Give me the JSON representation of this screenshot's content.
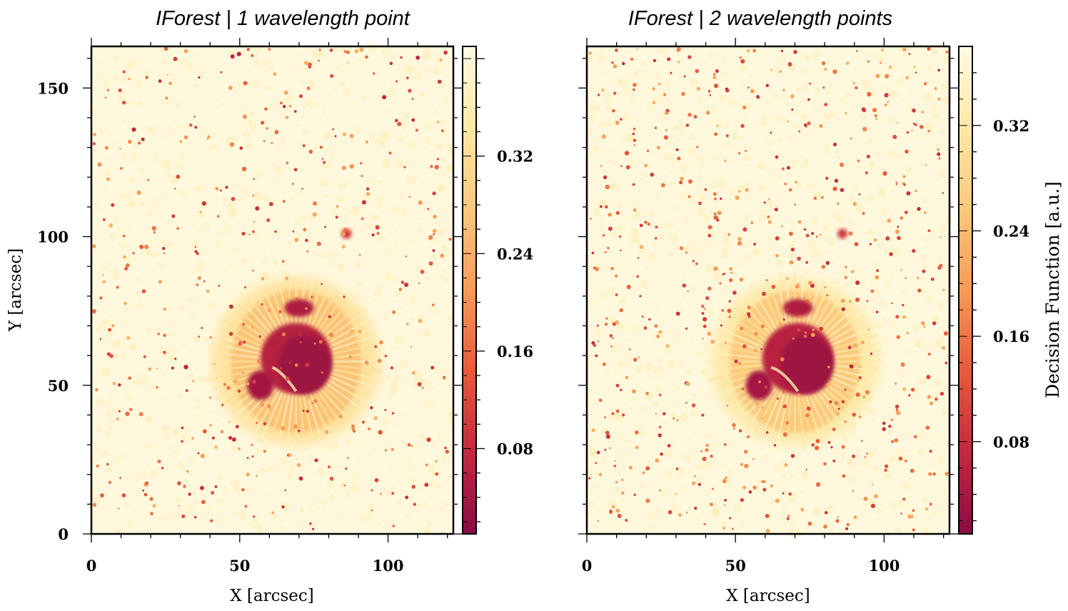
{
  "chart_data": [
    {
      "type": "heatmap",
      "title": "IForest | 1 wavelength point",
      "xlabel": "X [arcsec]",
      "ylabel": "Y [arcsec]",
      "xlim": [
        0,
        122
      ],
      "ylim": [
        0,
        164
      ],
      "xticks": [
        0,
        50,
        100
      ],
      "yticks": [
        0,
        50,
        100,
        150
      ],
      "colorbar": {
        "label": "",
        "range": [
          0.01,
          0.41
        ],
        "ticks": [
          "0.08",
          "0.16",
          "0.24",
          "0.32"
        ]
      },
      "colormap": [
        "#8b0a45",
        "#c3293f",
        "#e85a3c",
        "#f89a55",
        "#fbc87a",
        "#fde9a6",
        "#fff9e2"
      ],
      "features": [
        {
          "name": "umbra",
          "x": 72,
          "y": 57,
          "value": 0.03
        },
        {
          "name": "small umbra",
          "x": 57,
          "y": 50,
          "value": 0.04
        },
        {
          "name": "upper pore",
          "x": 70,
          "y": 76,
          "value": 0.05
        },
        {
          "name": "pore",
          "x": 86,
          "y": 101,
          "value": 0.09
        },
        {
          "name": "penumbra",
          "x": 69,
          "y": 60,
          "value": 0.27
        }
      ]
    },
    {
      "type": "heatmap",
      "title": "IForest | 2 wavelength points",
      "xlabel": "X [arcsec]",
      "ylabel": "",
      "xlim": [
        0,
        122
      ],
      "ylim": [
        0,
        164
      ],
      "xticks": [
        0,
        50,
        100
      ],
      "yticks": [
        0,
        50,
        100,
        150
      ],
      "colorbar": {
        "label": "Decision Function [a.u.]",
        "range": [
          0.01,
          0.38
        ],
        "ticks": [
          "0.08",
          "0.16",
          "0.24",
          "0.32"
        ]
      },
      "colormap": [
        "#8b0a45",
        "#c3293f",
        "#e85a3c",
        "#f89a55",
        "#fbc87a",
        "#fde9a6",
        "#fff9e2"
      ],
      "features": [
        {
          "name": "umbra",
          "x": 74,
          "y": 57,
          "value": 0.03
        },
        {
          "name": "small umbra",
          "x": 58,
          "y": 50,
          "value": 0.04
        },
        {
          "name": "upper pore",
          "x": 71,
          "y": 76,
          "value": 0.05
        },
        {
          "name": "pore",
          "x": 86,
          "y": 101,
          "value": 0.09
        },
        {
          "name": "penumbra",
          "x": 70,
          "y": 60,
          "value": 0.26
        }
      ]
    }
  ]
}
